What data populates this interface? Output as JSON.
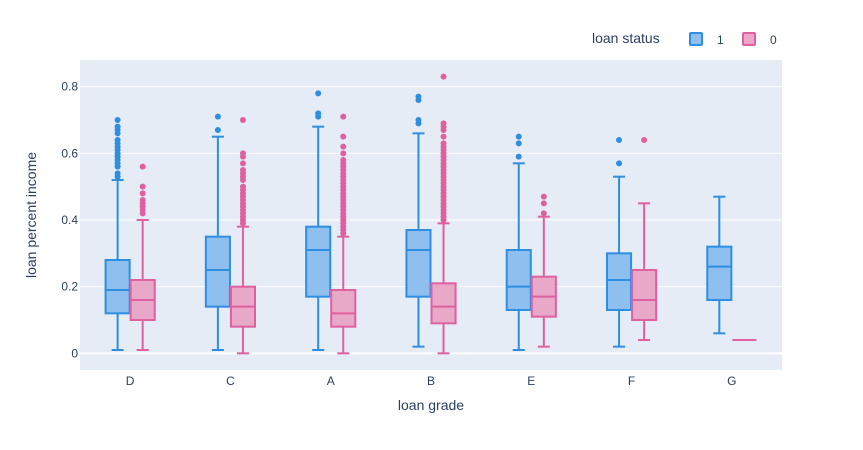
{
  "chart_data": {
    "type": "box",
    "xlabel": "loan grade",
    "ylabel": "loan percent income",
    "categories": [
      "D",
      "C",
      "A",
      "B",
      "E",
      "F",
      "G"
    ],
    "ylim": [
      -0.05,
      0.88
    ],
    "yticks": [
      0,
      0.2,
      0.4,
      0.6,
      0.8
    ],
    "ytick_labels": [
      "0",
      "0.2",
      "0.4",
      "0.6",
      "0.8"
    ],
    "grid": true,
    "legend": {
      "title": "loan status",
      "position": "top-right"
    },
    "series": [
      {
        "name": "1",
        "color": "#2e8ee0",
        "fill": "#8fbfee",
        "boxes": [
          {
            "category": "D",
            "q1": 0.12,
            "median": 0.19,
            "q3": 0.28,
            "lower": 0.01,
            "upper": 0.52,
            "outliers": [
              0.53,
              0.54,
              0.56,
              0.57,
              0.58,
              0.59,
              0.6,
              0.61,
              0.62,
              0.63,
              0.64,
              0.66,
              0.67,
              0.68,
              0.7
            ]
          },
          {
            "category": "C",
            "q1": 0.14,
            "median": 0.25,
            "q3": 0.35,
            "lower": 0.01,
            "upper": 0.65,
            "outliers": [
              0.67,
              0.71
            ]
          },
          {
            "category": "A",
            "q1": 0.17,
            "median": 0.31,
            "q3": 0.38,
            "lower": 0.01,
            "upper": 0.68,
            "outliers": [
              0.71,
              0.72,
              0.78
            ]
          },
          {
            "category": "B",
            "q1": 0.17,
            "median": 0.31,
            "q3": 0.37,
            "lower": 0.02,
            "upper": 0.66,
            "outliers": [
              0.69,
              0.7,
              0.76,
              0.77
            ]
          },
          {
            "category": "E",
            "q1": 0.13,
            "median": 0.2,
            "q3": 0.31,
            "lower": 0.01,
            "upper": 0.57,
            "outliers": [
              0.59,
              0.63,
              0.65
            ]
          },
          {
            "category": "F",
            "q1": 0.13,
            "median": 0.22,
            "q3": 0.3,
            "lower": 0.02,
            "upper": 0.53,
            "outliers": [
              0.57,
              0.64
            ]
          },
          {
            "category": "G",
            "q1": 0.16,
            "median": 0.26,
            "q3": 0.32,
            "lower": 0.06,
            "upper": 0.47,
            "outliers": []
          }
        ]
      },
      {
        "name": "0",
        "color": "#e0609f",
        "fill": "#e8a8c8",
        "boxes": [
          {
            "category": "D",
            "q1": 0.1,
            "median": 0.16,
            "q3": 0.22,
            "lower": 0.01,
            "upper": 0.4,
            "outliers": [
              0.42,
              0.43,
              0.44,
              0.45,
              0.46,
              0.48,
              0.5,
              0.56
            ]
          },
          {
            "category": "C",
            "q1": 0.08,
            "median": 0.14,
            "q3": 0.2,
            "lower": 0.0,
            "upper": 0.38,
            "outliers": [
              0.39,
              0.4,
              0.41,
              0.42,
              0.43,
              0.44,
              0.45,
              0.46,
              0.47,
              0.48,
              0.49,
              0.5,
              0.52,
              0.53,
              0.54,
              0.55,
              0.57,
              0.59,
              0.6,
              0.7
            ]
          },
          {
            "category": "A",
            "q1": 0.08,
            "median": 0.12,
            "q3": 0.19,
            "lower": 0.0,
            "upper": 0.35,
            "outliers": [
              0.36,
              0.37,
              0.38,
              0.39,
              0.4,
              0.41,
              0.42,
              0.43,
              0.44,
              0.45,
              0.46,
              0.47,
              0.48,
              0.49,
              0.5,
              0.51,
              0.52,
              0.53,
              0.54,
              0.55,
              0.56,
              0.57,
              0.58,
              0.6,
              0.62,
              0.65,
              0.71
            ]
          },
          {
            "category": "B",
            "q1": 0.09,
            "median": 0.14,
            "q3": 0.21,
            "lower": 0.0,
            "upper": 0.39,
            "outliers": [
              0.4,
              0.41,
              0.42,
              0.43,
              0.44,
              0.45,
              0.46,
              0.47,
              0.48,
              0.49,
              0.5,
              0.51,
              0.52,
              0.53,
              0.54,
              0.55,
              0.56,
              0.57,
              0.58,
              0.59,
              0.6,
              0.61,
              0.62,
              0.63,
              0.65,
              0.67,
              0.68,
              0.69,
              0.83
            ]
          },
          {
            "category": "E",
            "q1": 0.11,
            "median": 0.17,
            "q3": 0.23,
            "lower": 0.02,
            "upper": 0.41,
            "outliers": [
              0.42,
              0.45,
              0.47
            ]
          },
          {
            "category": "F",
            "q1": 0.1,
            "median": 0.16,
            "q3": 0.25,
            "lower": 0.04,
            "upper": 0.45,
            "outliers": [
              0.64
            ]
          },
          {
            "category": "G",
            "q1": 0.04,
            "median": 0.04,
            "q3": 0.04,
            "lower": 0.04,
            "upper": 0.04,
            "outliers": []
          }
        ]
      }
    ]
  }
}
